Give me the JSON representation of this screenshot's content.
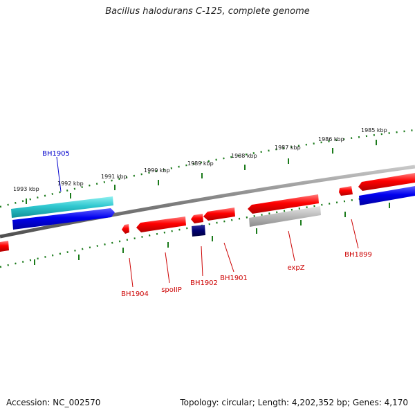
{
  "title": "Bacillus halodurans C-125, complete genome",
  "footer": {
    "accession": "Accession: NC_002570",
    "topology": "Topology: circular; Length: 4,202,352 bp; Genes: 4,170"
  },
  "ticks": [
    "1993 kbp",
    "1992 kbp",
    "1991 kbp",
    "1990 kbp",
    "1989 kbp",
    "1988 kbp",
    "1987 kbp",
    "1986 kbp",
    "1985 kbp"
  ],
  "genes": [
    {
      "name": "BH1905",
      "color": "#0000cc"
    },
    {
      "name": "BH1904",
      "color": "#cc0000"
    },
    {
      "name": "spoIIP",
      "color": "#cc0000"
    },
    {
      "name": "BH1902",
      "color": "#cc0000"
    },
    {
      "name": "BH1901",
      "color": "#cc0000"
    },
    {
      "name": "expZ",
      "color": "#cc0000"
    },
    {
      "name": "BH1899",
      "color": "#cc0000"
    }
  ],
  "colors": {
    "forward_cds": "#ff0000",
    "reverse_cds": "#0000ff",
    "rna": "#2ec8d2",
    "pseudo": "#b4b4b4",
    "dark_feature": "#000070",
    "backbone": "#808080",
    "tick": "#1a7a1a"
  }
}
